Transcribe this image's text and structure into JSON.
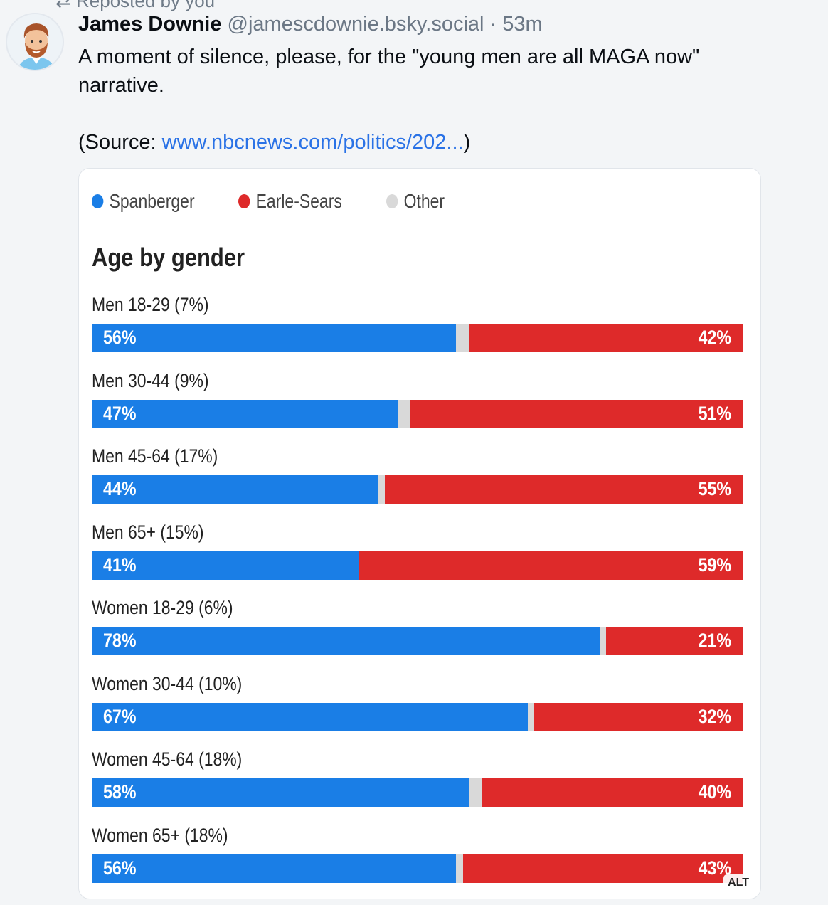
{
  "repost": {
    "label": "Reposted by you"
  },
  "post": {
    "author_name": "James Downie",
    "author_handle": "@jamescdownie.bsky.social",
    "separator": "·",
    "time": "53m",
    "text_line1": "A moment of silence, please, for the \"young men are all MAGA now\"",
    "text_line2": "narrative.",
    "source_prefix": "(Source: ",
    "source_link": "www.nbcnews.com/politics/202...",
    "source_suffix": ")",
    "alt_badge": "ALT"
  },
  "colors": {
    "spanberger": "#1a7ee6",
    "earle_sears": "#de2a2a",
    "other": "#d9d9d9"
  },
  "chart_data": {
    "type": "bar",
    "title": "Age by gender",
    "legend": [
      {
        "name": "Spanberger",
        "color": "#1a7ee6"
      },
      {
        "name": "Earle-Sears",
        "color": "#de2a2a"
      },
      {
        "name": "Other",
        "color": "#d9d9d9"
      }
    ],
    "categories": [
      "Men 18-29 (7%)",
      "Men 30-44 (9%)",
      "Men 45-64 (17%)",
      "Men 65+ (15%)",
      "Women 18-29 (6%)",
      "Women 30-44 (10%)",
      "Women 45-64 (18%)",
      "Women 65+ (18%)"
    ],
    "series": [
      {
        "name": "Spanberger",
        "values": [
          56,
          47,
          44,
          41,
          78,
          67,
          58,
          56
        ],
        "labels": [
          "56%",
          "47%",
          "44%",
          "41%",
          "78%",
          "67%",
          "58%",
          "56%"
        ]
      },
      {
        "name": "Earle-Sears",
        "values": [
          42,
          51,
          55,
          59,
          21,
          32,
          40,
          43
        ],
        "labels": [
          "42%",
          "51%",
          "55%",
          "59%",
          "21%",
          "32%",
          "40%",
          "43%"
        ]
      }
    ],
    "xlim": [
      0,
      100
    ]
  }
}
